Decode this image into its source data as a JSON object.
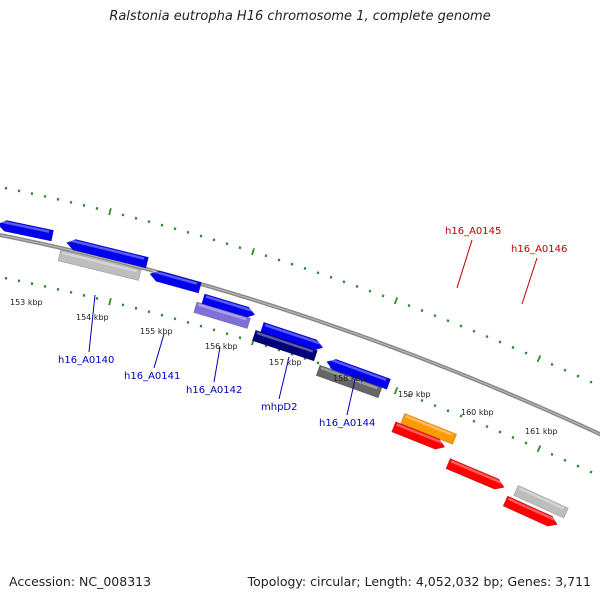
{
  "title": "Ralstonia eutropha H16 chromosome 1, complete genome",
  "footer": {
    "accession": "Accession: NC_008313",
    "summary": "Topology: circular; Length: 4,052,032 bp; Genes: 3,711"
  },
  "colors": {
    "backbone": "#8a8a8a",
    "tick": "#2e8b2e",
    "label_forward": "#c00000",
    "label_reverse": "#0000bb"
  },
  "ticks": [
    "153 kbp",
    "154 kbp",
    "155 kbp",
    "156 kbp",
    "157 kbp",
    "158 kbp",
    "159 kbp",
    "160 kbp",
    "161 kbp"
  ],
  "genes": [
    {
      "name": "",
      "strand": "reverse",
      "color": "#0000ee",
      "style": "arrow"
    },
    {
      "name": "",
      "strand": "reverse",
      "color": "#0000ee",
      "style": "arrow"
    },
    {
      "name": "",
      "strand": "reverse",
      "color": "#0000ee",
      "style": "arrow"
    },
    {
      "name": "",
      "strand": "forward",
      "color": "#0000ee",
      "style": "arrow"
    },
    {
      "name": "",
      "strand": "forward",
      "color": "#0000ee",
      "style": "arrow"
    },
    {
      "name": "",
      "strand": "reverse",
      "color": "#0000ee",
      "style": "arrow"
    },
    {
      "name": "",
      "strand": "",
      "color": "#bdbdbd",
      "style": "box"
    },
    {
      "name": "",
      "strand": "",
      "color": "#7f6fd8",
      "style": "box"
    },
    {
      "name": "",
      "strand": "",
      "color": "#000077",
      "style": "box"
    },
    {
      "name": "",
      "strand": "",
      "color": "#666666",
      "style": "box"
    },
    {
      "name": "",
      "strand": "",
      "color": "#ff9900",
      "style": "box"
    },
    {
      "name": "",
      "strand": "forward",
      "color": "#ff0000",
      "style": "arrow"
    },
    {
      "name": "",
      "strand": "forward",
      "color": "#ff0000",
      "style": "arrow"
    },
    {
      "name": "",
      "strand": "forward",
      "color": "#ff0000",
      "style": "arrow"
    },
    {
      "name": "",
      "strand": "",
      "color": "#bdbdbd",
      "style": "box"
    }
  ],
  "gene_labels": [
    {
      "text": "h16_A0140",
      "side": "reverse"
    },
    {
      "text": "h16_A0141",
      "side": "reverse"
    },
    {
      "text": "h16_A0142",
      "side": "reverse"
    },
    {
      "text": "mhpD2",
      "side": "reverse"
    },
    {
      "text": "h16_A0144",
      "side": "reverse"
    },
    {
      "text": "h16_A0145",
      "side": "forward"
    },
    {
      "text": "h16_A0146",
      "side": "forward"
    }
  ]
}
